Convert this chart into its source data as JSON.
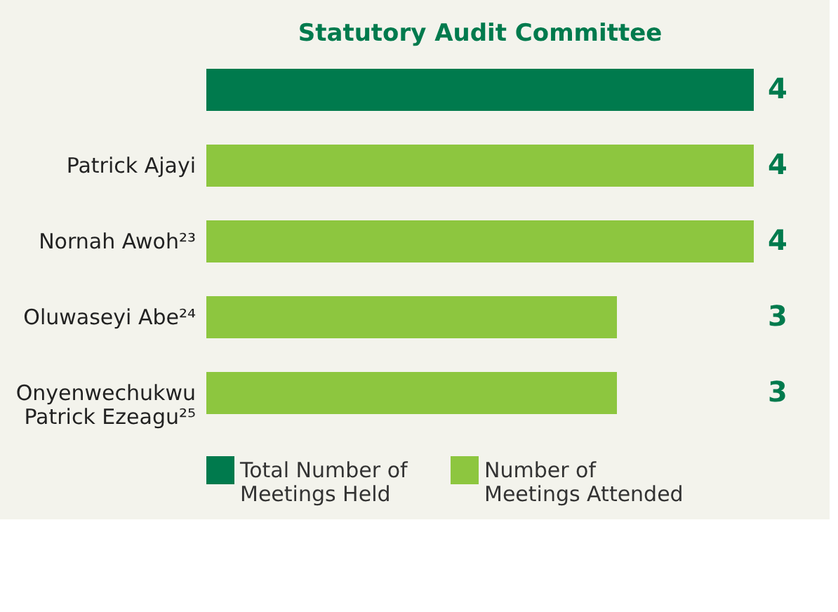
{
  "chart_data": {
    "type": "bar",
    "orientation": "horizontal",
    "title": "Statutory Audit Committee",
    "categories": [
      null,
      "Patrick Ajayi",
      "Nornah Awoh²³",
      "Oluwaseyi Abe²⁴",
      "Onyenwechukwu\nPatrick Ezeagu²⁵"
    ],
    "series": [
      {
        "name": "Total Number of\nMeetings Held",
        "color": "#007a4d",
        "values": [
          4,
          null,
          null,
          null,
          null
        ]
      },
      {
        "name": "Number of\nMeetings Attended",
        "color": "#8dc63f",
        "values": [
          null,
          4,
          4,
          3,
          3
        ]
      }
    ],
    "data_labels": true,
    "legend": "bottom"
  }
}
